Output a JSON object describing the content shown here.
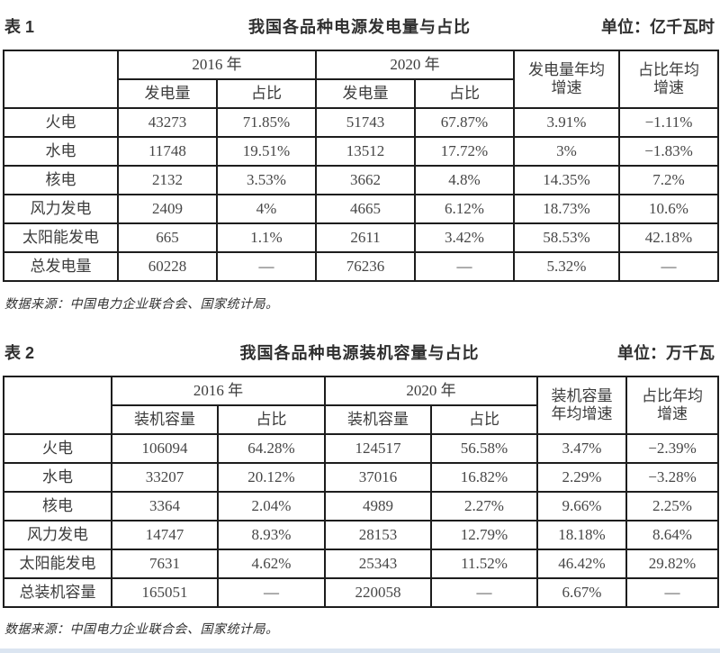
{
  "colors": {
    "table_border": "#1d1d1d",
    "body_text": "#3c3c3c",
    "bottom_strip": "#dbe5f1"
  },
  "table1": {
    "label": "表 1",
    "title": "我国各品种电源发电量与占比",
    "unit": "单位：亿千瓦时",
    "year_headers": [
      "2016 年",
      "2020 年"
    ],
    "sub_headers": [
      "发电量",
      "占比",
      "发电量",
      "占比"
    ],
    "growth_header": "发电量年均\n增速",
    "share_growth_header": "占比年均\n增速",
    "rows": [
      {
        "label": "火电",
        "cells": [
          "43273",
          "71.85%",
          "51743",
          "67.87%",
          "3.91%",
          "−1.11%"
        ]
      },
      {
        "label": "水电",
        "cells": [
          "11748",
          "19.51%",
          "13512",
          "17.72%",
          "3%",
          "−1.83%"
        ]
      },
      {
        "label": "核电",
        "cells": [
          "2132",
          "3.53%",
          "3662",
          "4.8%",
          "14.35%",
          "7.2%"
        ]
      },
      {
        "label": "风力发电",
        "cells": [
          "2409",
          "4%",
          "4665",
          "6.12%",
          "18.73%",
          "10.6%"
        ]
      },
      {
        "label": "太阳能发电",
        "cells": [
          "665",
          "1.1%",
          "2611",
          "3.42%",
          "58.53%",
          "42.18%"
        ]
      },
      {
        "label": "总发电量",
        "cells": [
          "60228",
          "—",
          "76236",
          "—",
          "5.32%",
          "—"
        ]
      }
    ],
    "source": "数据来源：中国电力企业联合会、国家统计局。"
  },
  "table2": {
    "label": "表 2",
    "title": "我国各品种电源装机容量与占比",
    "unit": "单位：万千瓦",
    "year_headers": [
      "2016 年",
      "2020 年"
    ],
    "sub_headers": [
      "装机容量",
      "占比",
      "装机容量",
      "占比"
    ],
    "growth_header": "装机容量\n年均增速",
    "share_growth_header": "占比年均\n增速",
    "rows": [
      {
        "label": "火电",
        "cells": [
          "106094",
          "64.28%",
          "124517",
          "56.58%",
          "3.47%",
          "−2.39%"
        ]
      },
      {
        "label": "水电",
        "cells": [
          "33207",
          "20.12%",
          "37016",
          "16.82%",
          "2.29%",
          "−3.28%"
        ]
      },
      {
        "label": "核电",
        "cells": [
          "3364",
          "2.04%",
          "4989",
          "2.27%",
          "9.66%",
          "2.25%"
        ]
      },
      {
        "label": "风力发电",
        "cells": [
          "14747",
          "8.93%",
          "28153",
          "12.79%",
          "18.18%",
          "8.64%"
        ]
      },
      {
        "label": "太阳能发电",
        "cells": [
          "7631",
          "4.62%",
          "25343",
          "11.52%",
          "46.42%",
          "29.82%"
        ]
      },
      {
        "label": "总装机容量",
        "cells": [
          "165051",
          "—",
          "220058",
          "—",
          "6.67%",
          "—"
        ]
      }
    ],
    "source": "数据来源：中国电力企业联合会、国家统计局。"
  }
}
